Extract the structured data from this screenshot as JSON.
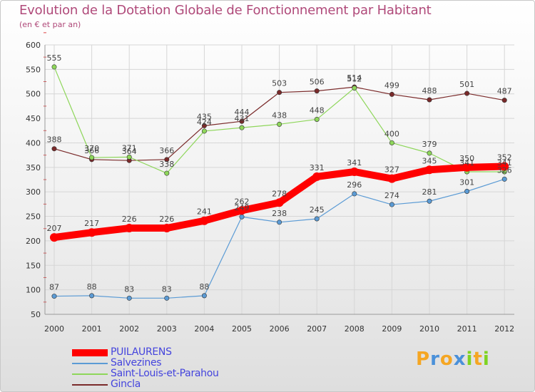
{
  "chart_data": {
    "type": "line",
    "title": "Evolution de la Dotation Globale de Fonctionnement par Habitant",
    "subtitle": "(en € et par an)",
    "xlabel": "",
    "ylabel": "",
    "categories": [
      "2000",
      "2001",
      "2002",
      "2003",
      "2004",
      "2005",
      "2006",
      "2007",
      "2008",
      "2009",
      "2010",
      "2011",
      "2012"
    ],
    "yticks": [
      "50",
      "100",
      "150",
      "200",
      "250",
      "300",
      "350",
      "400",
      "450",
      "500",
      "550",
      "600"
    ],
    "ylim": [
      50,
      600
    ],
    "grid": true,
    "legend_position": "bottom-left",
    "series": [
      {
        "name": "PUILAURENS",
        "color": "#ff0000",
        "width": "thick",
        "values": [
          207,
          217,
          226,
          226,
          241,
          262,
          278,
          331,
          341,
          327,
          345,
          350,
          352
        ],
        "labels": [
          "207",
          "217",
          "226",
          "226",
          "241",
          "262",
          "278",
          "331",
          "341",
          "327",
          "345",
          "350",
          "352"
        ]
      },
      {
        "name": "Salvezines",
        "color": "#5b9bd5",
        "width": "thin",
        "values": [
          87,
          88,
          83,
          83,
          88,
          249,
          238,
          245,
          296,
          274,
          281,
          301,
          326
        ],
        "labels": [
          "87",
          "88",
          "83",
          "83",
          "88",
          "249",
          "238",
          "245",
          "296",
          "274",
          "281",
          "301",
          "326"
        ]
      },
      {
        "name": "Saint-Louis-et-Parahou",
        "color": "#8ed65a",
        "width": "thin",
        "values": [
          555,
          370,
          371,
          338,
          424,
          431,
          438,
          448,
          512,
          400,
          379,
          341,
          341
        ],
        "labels": [
          "555",
          "370",
          "371",
          "338",
          "424",
          "431",
          "438",
          "448",
          "512",
          "400",
          "379",
          "341",
          "341"
        ]
      },
      {
        "name": "Gincla",
        "color": "#7a2a2a",
        "width": "thin",
        "values": [
          388,
          366,
          364,
          366,
          435,
          444,
          503,
          506,
          514,
          499,
          488,
          501,
          487
        ],
        "labels": [
          "388",
          "366",
          "364",
          "366",
          "435",
          "444",
          "503",
          "506",
          "514",
          "499",
          "488",
          "501",
          "487"
        ]
      }
    ]
  },
  "logo": {
    "letters": [
      "P",
      "r",
      "o",
      "x",
      "i",
      "t",
      "i"
    ],
    "colors": [
      "#f5a623",
      "#4a90d9",
      "#f5a623",
      "#4a90d9",
      "#7ed321",
      "#f5a623",
      "#7ed321"
    ]
  }
}
